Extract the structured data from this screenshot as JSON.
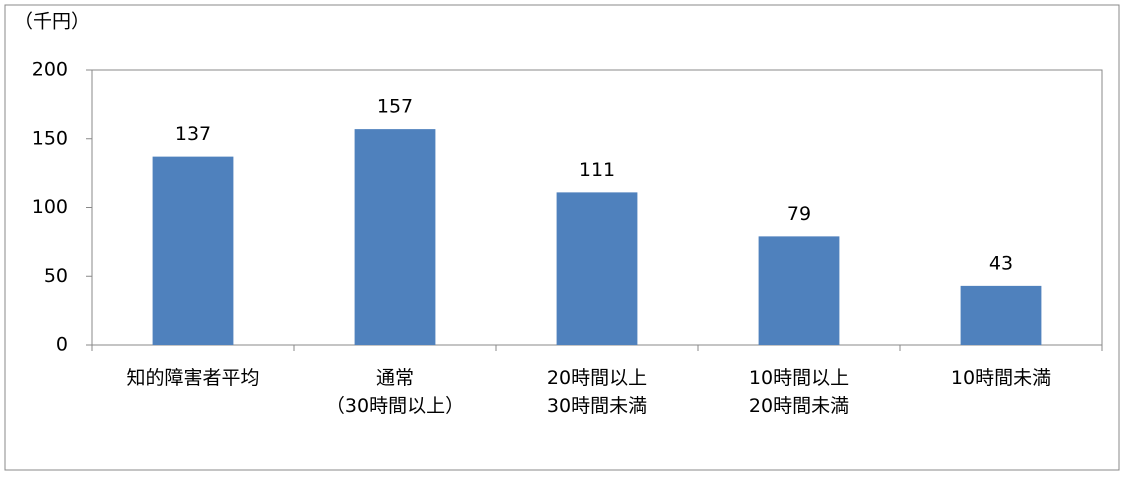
{
  "chart_data": {
    "type": "bar",
    "y_label": "（千円）",
    "categories": [
      "知的障害者平均",
      "通常\n（30時間以上）",
      "20時間以上\n30時間未満",
      "10時間以上\n20時間未満",
      "10時間未満"
    ],
    "values": [
      137,
      157,
      111,
      79,
      43
    ],
    "color": "#4f81bd",
    "ylim": [
      0,
      200
    ],
    "yticks": [
      0,
      50,
      100,
      150,
      200
    ],
    "grid": false
  }
}
